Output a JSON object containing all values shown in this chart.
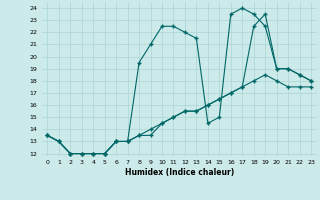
{
  "title": "",
  "xlabel": "Humidex (Indice chaleur)",
  "bg_color": "#cceaea",
  "line_color": "#006666",
  "xlim": [
    -0.5,
    23.5
  ],
  "ylim": [
    11.8,
    24.5
  ],
  "xticks": [
    0,
    1,
    2,
    3,
    4,
    5,
    6,
    7,
    8,
    9,
    10,
    11,
    12,
    13,
    14,
    15,
    16,
    17,
    18,
    19,
    20,
    21,
    22,
    23
  ],
  "yticks": [
    12,
    13,
    14,
    15,
    16,
    17,
    18,
    19,
    20,
    21,
    22,
    23,
    24
  ],
  "line1_x": [
    0,
    1,
    2,
    3,
    4,
    5,
    6,
    7,
    8,
    9,
    10,
    11,
    12,
    13,
    14,
    15,
    16,
    17,
    18,
    19,
    20,
    21,
    22,
    23
  ],
  "line1_y": [
    13.5,
    13.0,
    12.0,
    12.0,
    12.0,
    12.0,
    13.0,
    13.0,
    19.5,
    21.0,
    22.5,
    22.5,
    22.0,
    21.5,
    14.5,
    15.0,
    23.5,
    24.0,
    23.5,
    22.5,
    19.0,
    19.0,
    18.5,
    18.0
  ],
  "line2_x": [
    0,
    1,
    2,
    3,
    4,
    5,
    6,
    7,
    8,
    9,
    10,
    11,
    12,
    13,
    14,
    15,
    16,
    17,
    18,
    19,
    20,
    21,
    22,
    23
  ],
  "line2_y": [
    13.5,
    13.0,
    12.0,
    12.0,
    12.0,
    12.0,
    13.0,
    13.0,
    13.5,
    13.5,
    14.5,
    15.0,
    15.5,
    15.5,
    16.0,
    16.5,
    17.0,
    17.5,
    22.5,
    23.5,
    19.0,
    19.0,
    18.5,
    18.0
  ],
  "line3_x": [
    0,
    1,
    2,
    3,
    4,
    5,
    6,
    7,
    8,
    9,
    10,
    11,
    12,
    13,
    14,
    15,
    16,
    17,
    18,
    19,
    20,
    21,
    22,
    23
  ],
  "line3_y": [
    13.5,
    13.0,
    12.0,
    12.0,
    12.0,
    12.0,
    13.0,
    13.0,
    13.5,
    14.0,
    14.5,
    15.0,
    15.5,
    15.5,
    16.0,
    16.5,
    17.0,
    17.5,
    18.0,
    18.5,
    18.0,
    17.5,
    17.5,
    17.5
  ]
}
